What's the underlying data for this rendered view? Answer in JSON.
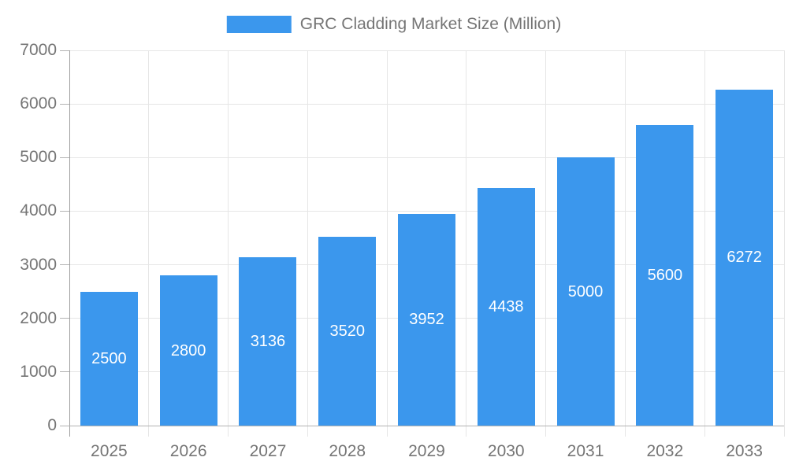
{
  "legend": {
    "label": "GRC Cladding Market Size (Million)",
    "swatch_color": "#3b97ed"
  },
  "chart_data": {
    "type": "bar",
    "title": "GRC Cladding Market Size (Million)",
    "categories": [
      "2025",
      "2026",
      "2027",
      "2028",
      "2029",
      "2030",
      "2031",
      "2032",
      "2033"
    ],
    "series": [
      {
        "name": "GRC Cladding Market Size (Million)",
        "values": [
          2500,
          2800,
          3136,
          3520,
          3952,
          4438,
          5000,
          5600,
          6272
        ]
      }
    ],
    "values": [
      2500,
      2800,
      3136,
      3520,
      3952,
      4438,
      5000,
      5600,
      6272
    ],
    "data_labels": [
      "2500",
      "2800",
      "3136",
      "3520",
      "3952",
      "4438",
      "5000",
      "5600",
      "6272"
    ],
    "xlabel": "",
    "ylabel": "",
    "ylim": [
      0,
      7000
    ],
    "yticks": [
      0,
      1000,
      2000,
      3000,
      4000,
      5000,
      6000,
      7000
    ],
    "ytick_labels": [
      "0",
      "1000",
      "2000",
      "3000",
      "4000",
      "5000",
      "6000",
      "7000"
    ],
    "grid": true,
    "legend_position": "top",
    "colors": {
      "bar": "#3b97ed",
      "bar_label_text": "#ffffff",
      "axis_text": "#757575",
      "gridline": "#e6e6e6",
      "axis_line": "#9e9e9e",
      "baseline": "#b3b3b3",
      "background": "#ffffff"
    }
  }
}
